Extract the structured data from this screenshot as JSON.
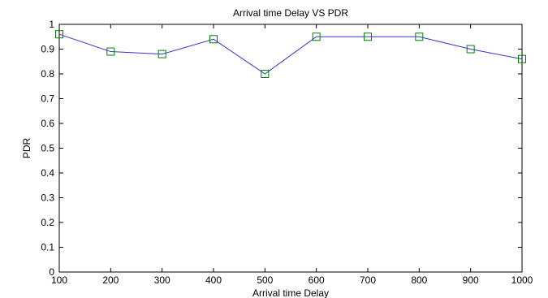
{
  "chart_data": {
    "type": "line",
    "title": "Arrival time Delay VS PDR",
    "xlabel": "Arrival time Delay",
    "ylabel": "PDR",
    "x": [
      100,
      200,
      300,
      400,
      500,
      600,
      700,
      800,
      900,
      1000
    ],
    "series": [
      {
        "values": [
          0.96,
          0.89,
          0.88,
          0.94,
          0.8,
          0.95,
          0.95,
          0.95,
          0.9,
          0.86
        ],
        "line_color": "#3333cc",
        "marker": "square",
        "marker_color": "#008000"
      }
    ],
    "xlim": [
      100,
      1000
    ],
    "ylim": [
      0,
      1
    ],
    "xticks": [
      "100",
      "200",
      "300",
      "400",
      "500",
      "600",
      "700",
      "800",
      "900",
      "1000"
    ],
    "yticks": [
      "0",
      "0.1",
      "0.2",
      "0.3",
      "0.4",
      "0.5",
      "0.6",
      "0.7",
      "0.8",
      "0.9",
      "1"
    ],
    "grid": false
  }
}
